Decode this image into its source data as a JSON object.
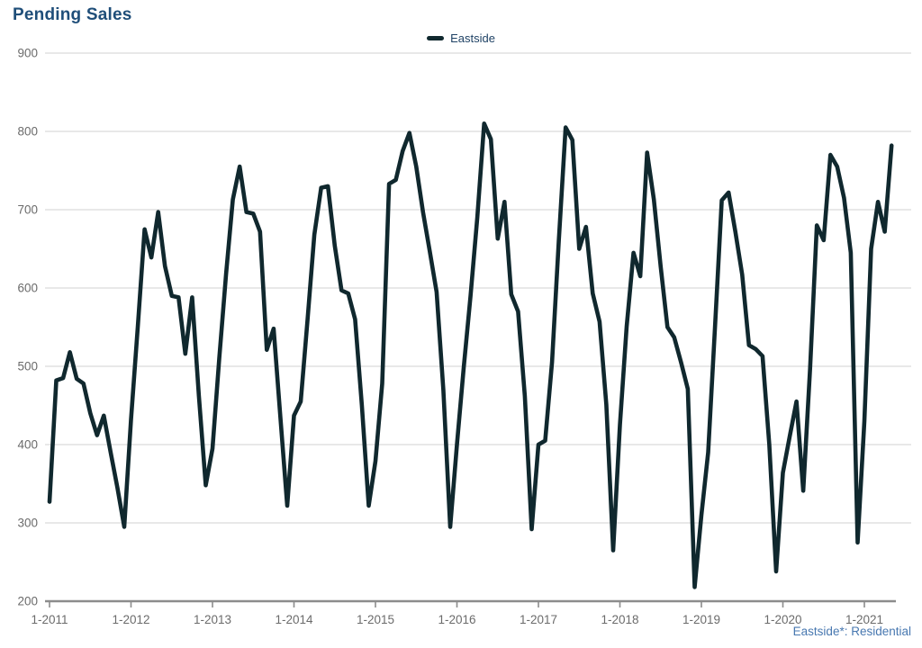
{
  "page": {
    "title": "Pending Sales",
    "footnote": "Eastside*: Residential"
  },
  "legend": {
    "label": "Eastside"
  },
  "colors": {
    "background": "#FFFFFF",
    "title_text": "#1F4E79",
    "legend_text": "#1F4265",
    "footnote_text": "#4878B0",
    "axis_text": "#6B6B6B",
    "gridline": "#D9D9D9",
    "axis_line": "#8C8C8C",
    "series_line": "#10282E"
  },
  "chart_data": {
    "type": "line",
    "title": "Pending Sales",
    "grid": "horizontal-only",
    "legend_position": "top-center",
    "footnote": "Eastside*: Residential",
    "ylim": [
      200,
      900
    ],
    "y_ticks": [
      900,
      800,
      700,
      600,
      500,
      400,
      300,
      200
    ],
    "x_tick_labels": [
      "1-2011",
      "1-2012",
      "1-2013",
      "1-2014",
      "1-2015",
      "1-2016",
      "1-2017",
      "1-2018",
      "1-2019",
      "1-2020",
      "1-2021"
    ],
    "x_unit": "month",
    "series": [
      {
        "name": "Eastside",
        "color": "#10282E",
        "start_month": "2011-01",
        "end_month": "2021-05",
        "values": [
          327,
          482,
          485,
          518,
          484,
          478,
          440,
          412,
          437,
          390,
          345,
          295,
          432,
          550,
          675,
          639,
          697,
          628,
          590,
          588,
          516,
          588,
          462,
          348,
          395,
          510,
          618,
          713,
          755,
          697,
          695,
          672,
          521,
          548,
          435,
          322,
          437,
          455,
          560,
          668,
          728,
          730,
          654,
          597,
          593,
          560,
          450,
          322,
          379,
          478,
          733,
          738,
          775,
          798,
          755,
          697,
          647,
          595,
          470,
          295,
          400,
          498,
          590,
          690,
          810,
          790,
          663,
          710,
          592,
          570,
          462,
          292,
          400,
          405,
          505,
          660,
          805,
          789,
          650,
          678,
          593,
          557,
          451,
          265,
          425,
          551,
          645,
          615,
          773,
          713,
          627,
          550,
          537,
          505,
          471,
          218,
          310,
          390,
          550,
          712,
          722,
          672,
          617,
          527,
          522,
          513,
          400,
          238,
          364,
          410,
          455,
          341,
          497,
          680,
          661,
          770,
          755,
          715,
          645,
          275,
          430,
          650,
          710,
          672,
          782
        ]
      }
    ]
  }
}
